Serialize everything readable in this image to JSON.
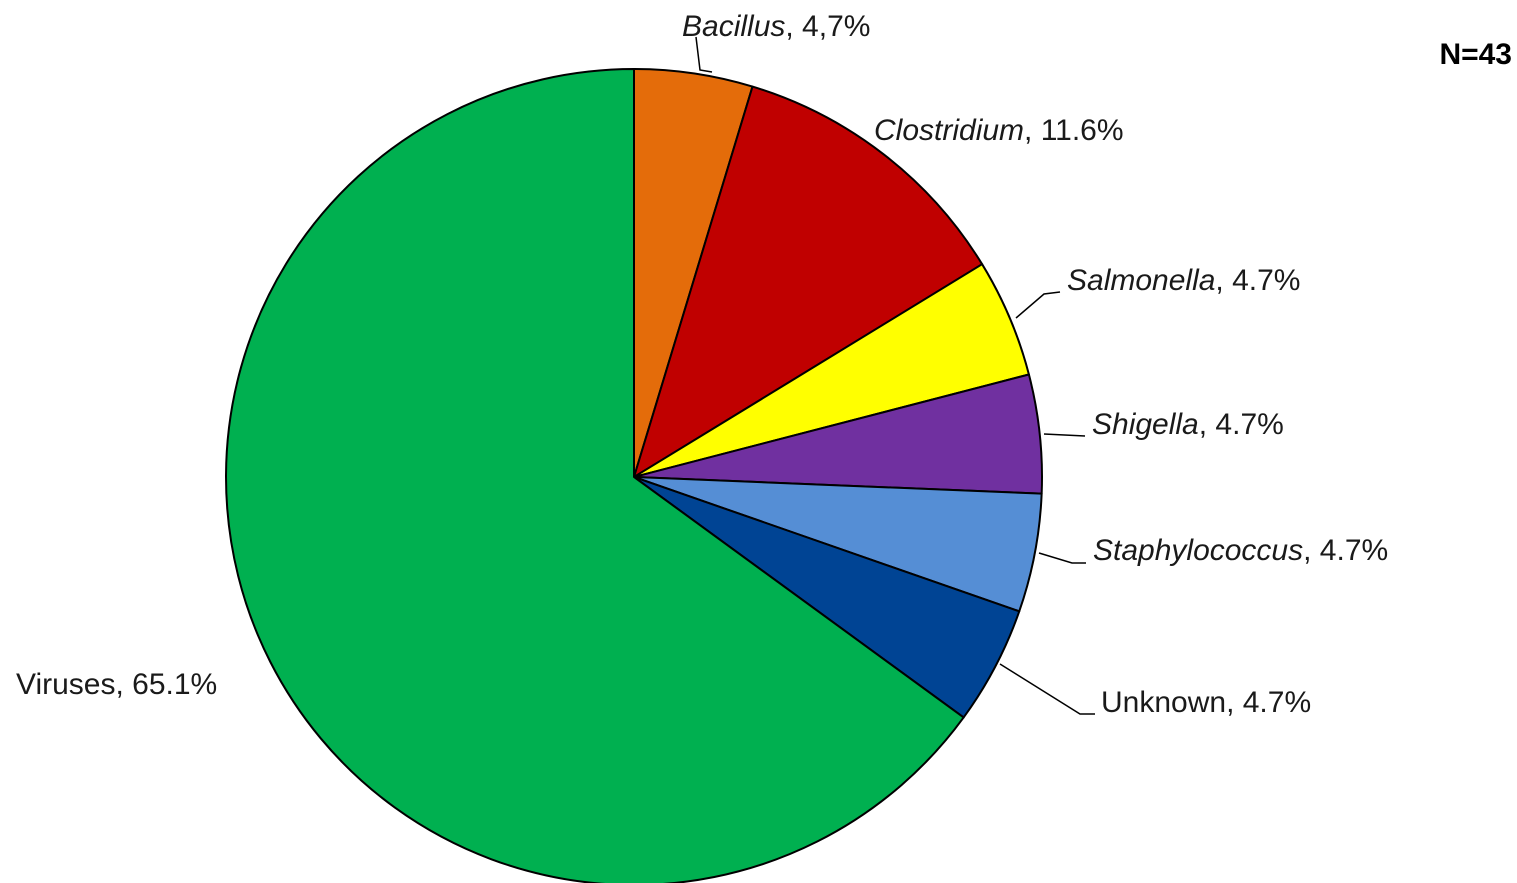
{
  "chart_data": {
    "type": "pie",
    "annotation": "N=43",
    "slices": [
      {
        "name": "Bacillus",
        "pct_label": "4,7%",
        "value": 4.7,
        "italic": true,
        "color": "#E46C0A",
        "label_side": "top"
      },
      {
        "name": "Clostridium",
        "pct_label": "11.6%",
        "value": 11.6,
        "italic": true,
        "color": "#C00000",
        "label_side": "right"
      },
      {
        "name": "Salmonella",
        "pct_label": "4.7%",
        "value": 4.7,
        "italic": true,
        "color": "#FFFF00",
        "label_side": "right"
      },
      {
        "name": "Shigella",
        "pct_label": "4.7%",
        "value": 4.7,
        "italic": true,
        "color": "#7030A0",
        "label_side": "right"
      },
      {
        "name": "Staphylococcus",
        "pct_label": "4.7%",
        "value": 4.7,
        "italic": true,
        "color": "#558ED5",
        "label_side": "right"
      },
      {
        "name": "Unknown",
        "pct_label": "4.7%",
        "value": 4.7,
        "italic": false,
        "color": "#004494",
        "label_side": "right"
      },
      {
        "name": "Viruses",
        "pct_label": "65.1%",
        "value": 65.1,
        "italic": false,
        "color": "#00B050",
        "label_side": "left"
      }
    ],
    "start": "12 o'clock",
    "direction": "clockwise",
    "legend": "none (data labels beside slices)"
  }
}
